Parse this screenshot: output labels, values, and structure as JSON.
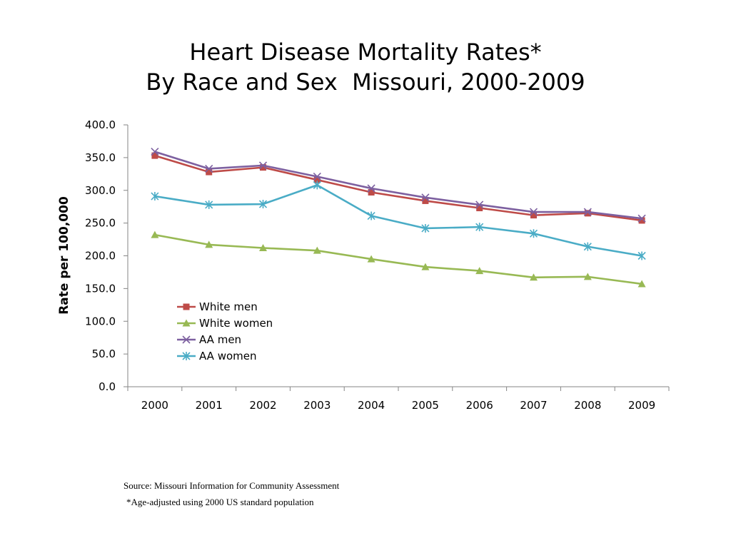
{
  "chart_data": {
    "type": "line",
    "title_line1": "Heart Disease Mortality Rates*",
    "title_line2": "By Race and Sex  Missouri, 2000-2009",
    "ylabel": "Rate  per 100,000",
    "categories": [
      "2000",
      "2001",
      "2002",
      "2003",
      "2004",
      "2005",
      "2006",
      "2007",
      "2008",
      "2009"
    ],
    "ylim": [
      0,
      400
    ],
    "yticks": [
      "0.0",
      "50.0",
      "100.0",
      "150.0",
      "200.0",
      "250.0",
      "300.0",
      "350.0",
      "400.0"
    ],
    "grid": false,
    "legend_position": "center-left",
    "series": [
      {
        "name": "White men",
        "color": "#be4b48",
        "marker": "square",
        "values": [
          353,
          328,
          335,
          316,
          297,
          284,
          273,
          262,
          265,
          254
        ]
      },
      {
        "name": "White women",
        "color": "#98b954",
        "marker": "triangle",
        "values": [
          232,
          217,
          212,
          208,
          195,
          183,
          177,
          167,
          168,
          157
        ]
      },
      {
        "name": "AA men",
        "color": "#7d60a0",
        "marker": "x",
        "values": [
          359,
          333,
          338,
          321,
          303,
          289,
          278,
          267,
          267,
          257
        ]
      },
      {
        "name": "AA women",
        "color": "#4aacc6",
        "marker": "star",
        "values": [
          291,
          278,
          279,
          308,
          261,
          242,
          244,
          234,
          214,
          200
        ]
      }
    ]
  },
  "notes": {
    "source": "Source: Missouri Information for Community Assessment",
    "footnote": "*Age-adjusted using 2000 US standard population"
  }
}
